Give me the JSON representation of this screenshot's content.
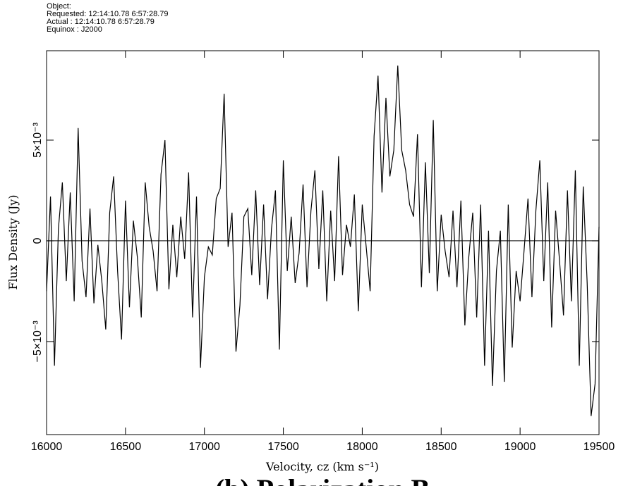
{
  "chart_data": {
    "type": "line",
    "header": [
      "Object:",
      "Requested: 12:14:10.78   6:57:28.79",
      "Actual     : 12:14:10.78   6:57:28.79",
      "Equinox   : J2000"
    ],
    "xlabel": "Velocity, cz (km s⁻¹)",
    "ylabel": "Flux Density (Jy)",
    "caption": "(b) Polarization B",
    "xlim": [
      16000,
      19500
    ],
    "xticks": [
      16000,
      16500,
      17000,
      17500,
      18000,
      18500,
      19000,
      19500
    ],
    "ylim": [
      -0.00962,
      0.00944
    ],
    "yticks": [
      {
        "value": -0.005,
        "label": "−5×10⁻³"
      },
      0,
      {
        "value": 0.005,
        "label": "5×10⁻³"
      }
    ],
    "zero_line": true,
    "x": [
      16000,
      16025,
      16050,
      16075,
      16100,
      16125,
      16150,
      16175,
      16200,
      16225,
      16250,
      16275,
      16300,
      16325,
      16350,
      16375,
      16400,
      16425,
      16450,
      16475,
      16500,
      16525,
      16550,
      16575,
      16600,
      16625,
      16650,
      16675,
      16700,
      16725,
      16750,
      16775,
      16800,
      16825,
      16850,
      16875,
      16900,
      16925,
      16950,
      16975,
      17000,
      17025,
      17050,
      17075,
      17100,
      17125,
      17150,
      17175,
      17200,
      17225,
      17250,
      17275,
      17300,
      17325,
      17350,
      17375,
      17400,
      17425,
      17450,
      17475,
      17500,
      17525,
      17550,
      17575,
      17600,
      17625,
      17650,
      17675,
      17700,
      17725,
      17750,
      17775,
      17800,
      17825,
      17850,
      17875,
      17900,
      17925,
      17950,
      17975,
      18000,
      18025,
      18050,
      18075,
      18100,
      18125,
      18150,
      18175,
      18200,
      18225,
      18250,
      18275,
      18300,
      18325,
      18350,
      18375,
      18400,
      18425,
      18450,
      18475,
      18500,
      18525,
      18550,
      18575,
      18600,
      18625,
      18650,
      18675,
      18700,
      18725,
      18750,
      18775,
      18800,
      18825,
      18850,
      18875,
      18900,
      18925,
      18950,
      18975,
      19000,
      19025,
      19050,
      19075,
      19100,
      19125,
      19150,
      19175,
      19200,
      19225,
      19250,
      19275,
      19300,
      19325,
      19350,
      19375,
      19400,
      19425,
      19450,
      19475,
      19500
    ],
    "series": [
      {
        "color": "#000000",
        "values": [
          -0.0025,
          0.0022,
          -0.0062,
          0.0006,
          0.0029,
          -0.002,
          0.0024,
          -0.003,
          0.0056,
          -0.001,
          -0.0028,
          0.0016,
          -0.0031,
          -0.0002,
          -0.002,
          -0.0044,
          0.0014,
          0.0032,
          -0.0015,
          -0.0049,
          0.002,
          -0.0033,
          0.001,
          -0.0008,
          -0.0038,
          0.0029,
          0.0007,
          -0.0005,
          -0.0025,
          0.0033,
          0.005,
          -0.0024,
          0.0008,
          -0.0018,
          0.0012,
          -0.0009,
          0.0034,
          -0.0038,
          0.0022,
          -0.0063,
          -0.0018,
          -0.0003,
          -0.0007,
          0.0021,
          0.0026,
          0.0073,
          -0.0003,
          0.0014,
          -0.0055,
          -0.0032,
          0.0012,
          0.0016,
          -0.0017,
          0.0025,
          -0.0022,
          0.0018,
          -0.0029,
          0.0006,
          0.0025,
          -0.0054,
          0.004,
          -0.0015,
          0.0012,
          -0.0021,
          -0.0006,
          0.0028,
          -0.0023,
          0.0015,
          0.0035,
          -0.0014,
          0.0025,
          -0.003,
          0.0015,
          -0.002,
          0.0042,
          -0.0017,
          0.0008,
          -0.0003,
          0.0023,
          -0.0035,
          0.0018,
          -0.0003,
          -0.0025,
          0.0052,
          0.0082,
          0.0024,
          0.0071,
          0.0032,
          0.0045,
          0.0087,
          0.0045,
          0.0035,
          0.0018,
          0.0012,
          0.0053,
          -0.0023,
          0.0039,
          -0.0016,
          0.006,
          -0.0025,
          0.0013,
          -0.0005,
          -0.0018,
          0.0015,
          -0.0023,
          0.002,
          -0.0042,
          -0.0008,
          0.0014,
          -0.0038,
          0.0018,
          -0.0062,
          0.0005,
          -0.0072,
          -0.0015,
          0.0005,
          -0.007,
          0.0018,
          -0.0053,
          -0.0015,
          -0.003,
          -0.0005,
          0.0021,
          -0.0028,
          0.0015,
          0.004,
          -0.002,
          0.0029,
          -0.0043,
          0.0015,
          -0.001,
          -0.0037,
          0.0025,
          -0.003,
          0.0035,
          -0.0062,
          0.0027,
          -0.0021,
          -0.0087,
          -0.0071,
          0.0007
        ]
      }
    ]
  }
}
